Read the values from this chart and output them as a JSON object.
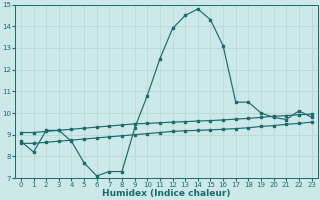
{
  "xlabel": "Humidex (Indice chaleur)",
  "ylabel": "",
  "bg_color": "#cce8e8",
  "grid_color": "#b8d8d8",
  "line_color": "#1a6b6b",
  "xlim": [
    -0.5,
    23.5
  ],
  "ylim": [
    7,
    15
  ],
  "xticks": [
    0,
    1,
    2,
    3,
    4,
    5,
    6,
    7,
    8,
    9,
    10,
    11,
    12,
    13,
    14,
    15,
    16,
    17,
    18,
    19,
    20,
    21,
    22,
    23
  ],
  "yticks": [
    7,
    8,
    9,
    10,
    11,
    12,
    13,
    14,
    15
  ],
  "line1_x": [
    0,
    1,
    2,
    3,
    4,
    5,
    6,
    7,
    8,
    9,
    10,
    11,
    12,
    13,
    14,
    15,
    16,
    17,
    18,
    19,
    20,
    21,
    22,
    23
  ],
  "line1_y": [
    8.7,
    8.2,
    9.2,
    9.2,
    8.7,
    7.7,
    7.1,
    7.3,
    7.3,
    9.3,
    10.8,
    12.5,
    13.9,
    14.5,
    14.8,
    14.3,
    13.1,
    10.5,
    10.5,
    10.0,
    9.8,
    9.7,
    10.1,
    9.8
  ],
  "line2_x": [
    0,
    1,
    2,
    3,
    4,
    5,
    6,
    7,
    8,
    9,
    10,
    11,
    12,
    13,
    14,
    15,
    16,
    17,
    18,
    19,
    20,
    21,
    22,
    23
  ],
  "line2_y": [
    9.1,
    9.1,
    9.15,
    9.2,
    9.25,
    9.3,
    9.35,
    9.4,
    9.45,
    9.5,
    9.52,
    9.55,
    9.58,
    9.6,
    9.63,
    9.65,
    9.68,
    9.72,
    9.75,
    9.8,
    9.85,
    9.88,
    9.92,
    9.95
  ],
  "line3_x": [
    0,
    1,
    2,
    3,
    4,
    5,
    6,
    7,
    8,
    9,
    10,
    11,
    12,
    13,
    14,
    15,
    16,
    17,
    18,
    19,
    20,
    21,
    22,
    23
  ],
  "line3_y": [
    8.6,
    8.6,
    8.65,
    8.7,
    8.75,
    8.8,
    8.85,
    8.9,
    8.95,
    9.0,
    9.05,
    9.1,
    9.15,
    9.18,
    9.2,
    9.22,
    9.25,
    9.28,
    9.32,
    9.38,
    9.42,
    9.48,
    9.52,
    9.58
  ]
}
